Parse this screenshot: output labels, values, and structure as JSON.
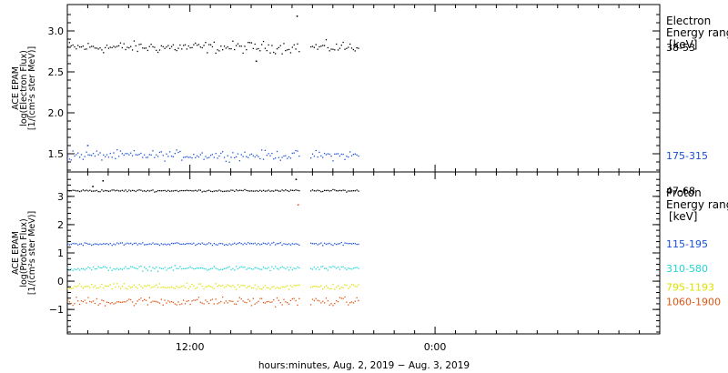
{
  "chart_data": [
    {
      "type": "scatter",
      "panel": "electron",
      "ylabel_lines": [
        "ACE EPAM",
        "log(Electron Flux)",
        "[1/(cm²s ster MeV)]"
      ],
      "ylim": [
        1.3,
        3.3
      ],
      "yticks": [
        1.5,
        2.0,
        2.5,
        3.0
      ],
      "ytick_labels": [
        "1.5",
        "2.0",
        "2.5",
        "3.0"
      ],
      "legend_title_lines": [
        "Electron",
        "Energy ranges"
      ],
      "legend_unit": "[keV]",
      "series": [
        {
          "name": "38-53",
          "color": "#000000",
          "mean": 2.8,
          "spread": 0.06,
          "outliers": [
            {
              "x": 17.25,
              "y": 3.18
            },
            {
              "x": 15.25,
              "y": 2.63
            }
          ]
        },
        {
          "name": "175-315",
          "color": "#1a4fd6",
          "mean": 1.48,
          "spread": 0.05,
          "outliers": [
            {
              "x": 7.0,
              "y": 1.6
            }
          ]
        }
      ]
    },
    {
      "type": "scatter",
      "panel": "proton",
      "ylabel_lines": [
        "ACE EPAM",
        "log(Proton Flux)",
        "[1/(cm²s ster MeV)]"
      ],
      "ylim": [
        -1.8,
        3.8
      ],
      "yticks": [
        -1,
        0,
        1,
        2,
        3
      ],
      "ytick_labels": [
        "−1",
        "0",
        "1",
        "2",
        "3"
      ],
      "legend_title_lines": [
        "Proton",
        "Energy ranges"
      ],
      "legend_unit": "[keV]",
      "series": [
        {
          "name": "47-68",
          "color": "#000000",
          "mean": 3.2,
          "spread": 0.03,
          "outliers": [
            {
              "x": 7.75,
              "y": 3.55
            },
            {
              "x": 7.25,
              "y": 3.35
            },
            {
              "x": 17.2,
              "y": 3.6
            }
          ]
        },
        {
          "name": "115-195",
          "color": "#1a4fd6",
          "mean": 1.32,
          "spread": 0.04,
          "outliers": []
        },
        {
          "name": "310-580",
          "color": "#22d4d4",
          "mean": 0.45,
          "spread": 0.07,
          "outliers": []
        },
        {
          "name": "795-1193",
          "color": "#e0e000",
          "mean": -0.2,
          "spread": 0.09,
          "outliers": []
        },
        {
          "name": "1060-1900",
          "color": "#dd5511",
          "mean": -0.72,
          "spread": 0.13,
          "outliers": [
            {
              "x": 17.3,
              "y": 2.7
            }
          ]
        }
      ]
    }
  ],
  "x_axis": {
    "unit": "hours since 2019-08-02 00:00",
    "xlim": [
      6.0,
      35.0
    ],
    "data_segments": [
      [
        6.0,
        17.35
      ],
      [
        17.9,
        20.3
      ]
    ],
    "ticks": [
      12,
      24
    ],
    "tick_labels": [
      "12:00",
      "0:00"
    ],
    "xlabel": "hours:minutes, Aug.  2, 2019 − Aug.  3, 2019"
  }
}
